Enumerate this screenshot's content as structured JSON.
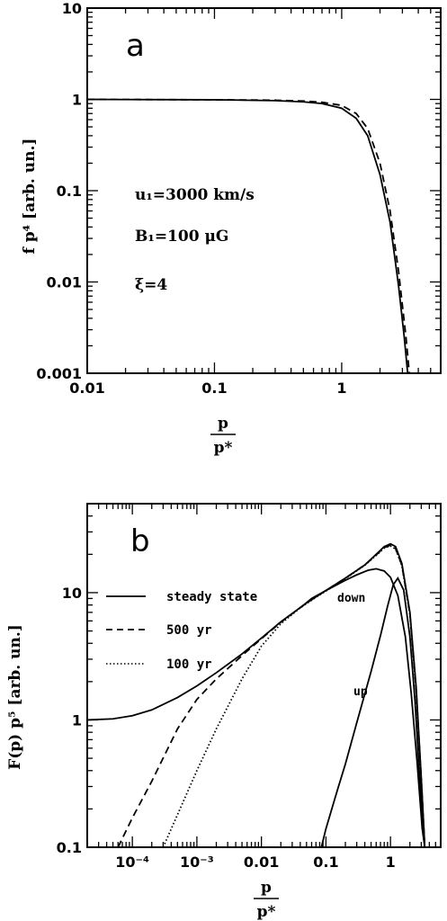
{
  "chart_data": [
    {
      "panel": "a",
      "type": "line",
      "xscale": "log",
      "yscale": "log",
      "xlim": [
        0.01,
        6
      ],
      "ylim": [
        0.001,
        10
      ],
      "xticks": [
        0.01,
        0.1,
        1
      ],
      "xtick_labels": [
        "0.01",
        "0.1",
        "1"
      ],
      "yticks": [
        0.001,
        0.01,
        0.1,
        1,
        10
      ],
      "ytick_labels": [
        "0.001",
        "0.01",
        "0.1",
        "1",
        "10"
      ],
      "ylabel": "f p⁴ [arb. un.]",
      "xlabel_num": "p",
      "xlabel_den": "p*",
      "annotations": [
        "u₁=3000 km/s",
        "B₁=100 μG",
        "ξ=4"
      ],
      "series": [
        {
          "style": "solid",
          "x": [
            0.01,
            0.1,
            0.3,
            0.5,
            0.7,
            1.0,
            1.3,
            1.6,
            2.0,
            2.4,
            2.8,
            3.1,
            3.3
          ],
          "y": [
            1.0,
            0.99,
            0.97,
            0.94,
            0.9,
            0.8,
            0.62,
            0.4,
            0.15,
            0.045,
            0.009,
            0.0025,
            0.001
          ]
        },
        {
          "style": "dashed",
          "x": [
            0.01,
            0.1,
            0.3,
            0.5,
            0.7,
            1.0,
            1.3,
            1.6,
            2.0,
            2.4,
            2.8,
            3.2,
            3.4
          ],
          "y": [
            1.0,
            0.99,
            0.98,
            0.96,
            0.93,
            0.86,
            0.7,
            0.48,
            0.2,
            0.06,
            0.013,
            0.0025,
            0.001
          ]
        }
      ]
    },
    {
      "panel": "b",
      "type": "line",
      "xscale": "log",
      "yscale": "log",
      "xlim": [
        2e-05,
        6
      ],
      "ylim": [
        0.1,
        50
      ],
      "xticks": [
        0.0001,
        0.001,
        0.01,
        0.1,
        1
      ],
      "xtick_labels": [
        "10⁻⁴",
        "10⁻³",
        "0.01",
        "0.1",
        "1"
      ],
      "yticks": [
        0.1,
        1,
        10
      ],
      "ytick_labels": [
        "0.1",
        "1",
        "10"
      ],
      "ylabel": "F(p) p⁵ [arb. un.]",
      "xlabel_num": "p",
      "xlabel_den": "p*",
      "legend": [
        {
          "style": "solid",
          "label": "steady state"
        },
        {
          "style": "dashed",
          "label": "500 yr"
        },
        {
          "style": "dotted",
          "label": "100 yr"
        }
      ],
      "curve_labels": [
        "down",
        "up"
      ],
      "series": [
        {
          "name": "steady state",
          "style": "solid",
          "x": [
            2e-05,
            5e-05,
            0.0001,
            0.0002,
            0.0005,
            0.001,
            0.002,
            0.005,
            0.01,
            0.02,
            0.05,
            0.1,
            0.2,
            0.4,
            0.6,
            0.8,
            1.0,
            1.2,
            1.5,
            2.0,
            2.5,
            3.0,
            3.4
          ],
          "y": [
            1.0,
            1.02,
            1.08,
            1.2,
            1.5,
            1.85,
            2.35,
            3.3,
            4.4,
            5.9,
            8.3,
            10.4,
            13.0,
            16.5,
            20.0,
            23.0,
            24.2,
            23.0,
            17.0,
            7.0,
            1.8,
            0.35,
            0.1
          ]
        },
        {
          "name": "500 yr",
          "style": "dashed",
          "x": [
            6e-05,
            0.0001,
            0.0002,
            0.0005,
            0.001,
            0.002,
            0.005,
            0.01,
            0.02,
            0.05,
            0.1,
            0.2,
            0.4,
            0.6,
            0.8,
            1.0,
            1.2,
            1.5,
            2.0,
            2.5,
            3.0,
            3.4
          ],
          "y": [
            0.1,
            0.17,
            0.33,
            0.85,
            1.45,
            2.1,
            3.2,
            4.35,
            5.85,
            8.3,
            10.4,
            13.0,
            16.5,
            19.8,
            22.6,
            23.6,
            22.2,
            16.5,
            6.8,
            1.7,
            0.34,
            0.1
          ]
        },
        {
          "name": "100 yr",
          "style": "dotted",
          "x": [
            0.0003,
            0.0005,
            0.001,
            0.002,
            0.005,
            0.01,
            0.02,
            0.04,
            0.07,
            0.1,
            0.2,
            0.4,
            0.6,
            0.8,
            1.0,
            1.2,
            1.5,
            2.0,
            2.5,
            3.0,
            3.4
          ],
          "y": [
            0.1,
            0.18,
            0.4,
            0.85,
            2.1,
            3.8,
            5.7,
            7.6,
            9.2,
            10.3,
            12.9,
            16.4,
            19.6,
            22.4,
            23.3,
            22.0,
            16.3,
            6.7,
            1.7,
            0.33,
            0.1
          ]
        },
        {
          "name": "down",
          "style": "solid",
          "x": [
            0.04,
            0.06,
            0.1,
            0.2,
            0.3,
            0.45,
            0.6,
            0.8,
            1.0,
            1.3,
            1.7,
            2.1,
            2.6,
            3.1,
            3.4
          ],
          "y": [
            7.6,
            9.0,
            10.4,
            12.5,
            13.8,
            15.0,
            15.4,
            14.8,
            13.2,
            9.5,
            4.5,
            1.6,
            0.45,
            0.14,
            0.1
          ]
        },
        {
          "name": "up",
          "style": "solid",
          "x": [
            0.085,
            0.1,
            0.15,
            0.2,
            0.3,
            0.5,
            0.7,
            0.9,
            1.1,
            1.3,
            1.6,
            2.0,
            2.4,
            2.8,
            3.2,
            3.4
          ],
          "y": [
            0.1,
            0.14,
            0.28,
            0.45,
            0.95,
            2.4,
            4.6,
            7.8,
            11.5,
            13.0,
            10.5,
            4.5,
            1.4,
            0.38,
            0.13,
            0.1
          ]
        }
      ]
    }
  ]
}
